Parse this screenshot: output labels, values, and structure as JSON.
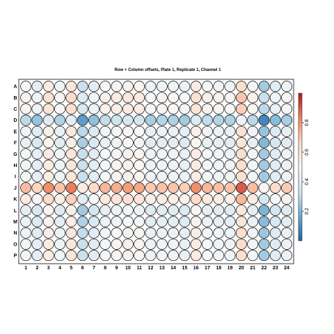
{
  "chart_data": {
    "type": "heatmap",
    "title": "Row + Column offsets, Plate 1, Replicate 1, Channel 1",
    "rows": [
      "A",
      "B",
      "C",
      "D",
      "E",
      "F",
      "G",
      "H",
      "I",
      "J",
      "K",
      "L",
      "M",
      "N",
      "O",
      "P"
    ],
    "columns": [
      "1",
      "2",
      "3",
      "4",
      "5",
      "6",
      "7",
      "8",
      "9",
      "10",
      "11",
      "12",
      "13",
      "14",
      "15",
      "16",
      "17",
      "18",
      "19",
      "20",
      "21",
      "22",
      "23",
      "24"
    ],
    "colorbar": {
      "ticks": [
        "0.2",
        "0.4",
        "0.6",
        "0.8"
      ],
      "tick_values": [
        0.2,
        0.4,
        0.6,
        0.8
      ],
      "range": [
        0.0,
        1.0
      ],
      "palette": [
        "#2166ac",
        "#67a9cf",
        "#d1e5f0",
        "#f7f7f7",
        "#fddbc7",
        "#ef8a62",
        "#b2182b"
      ]
    },
    "row_offsets": [
      0.0,
      0.06,
      0.04,
      -0.18,
      -0.02,
      -0.05,
      0.0,
      0.0,
      0.0,
      0.25,
      0.09,
      -0.06,
      -0.04,
      -0.01,
      0.0,
      0.0
    ],
    "column_offsets": [
      -0.02,
      -0.08,
      0.07,
      -0.04,
      0.1,
      -0.18,
      -0.09,
      -0.01,
      0.01,
      0.04,
      0.02,
      -0.05,
      -0.03,
      -0.04,
      -0.06,
      0.07,
      -0.01,
      -0.03,
      -0.04,
      0.15,
      -0.02,
      -0.24,
      -0.1,
      -0.05
    ],
    "base": 0.5
  }
}
